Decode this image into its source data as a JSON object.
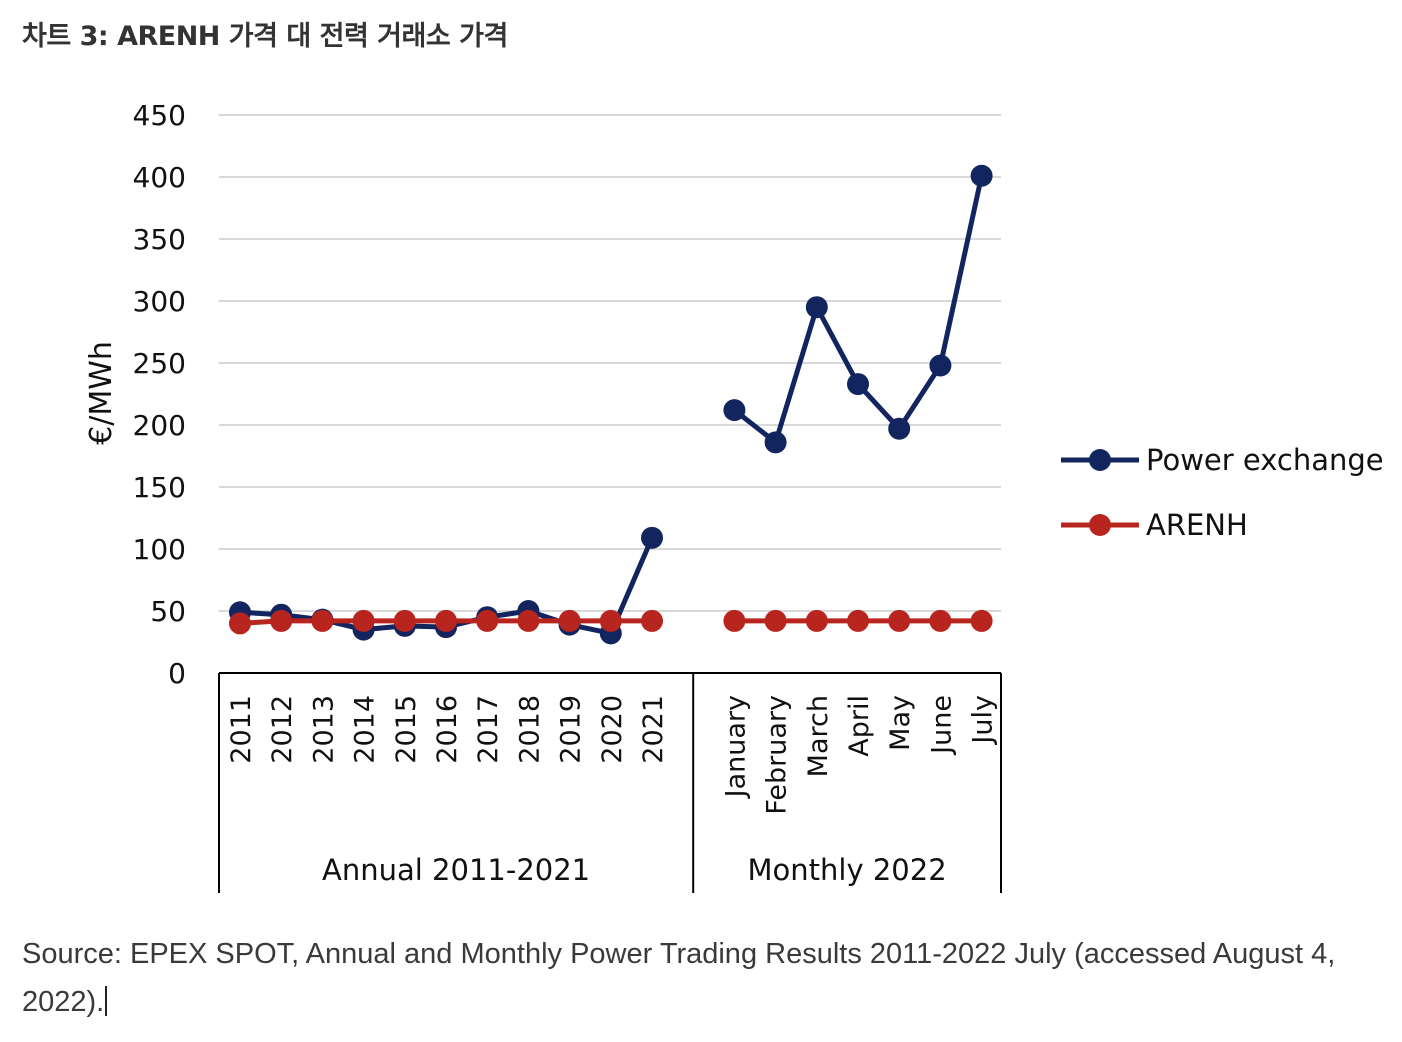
{
  "title": "차트 3: ARENH 가격 대 전력 거래소 가격",
  "source": "Source: EPEX SPOT, Annual and Monthly Power Trading Results 2011-2022 July (accessed August 4, 2022).",
  "colors": {
    "power_exchange": "#12255e",
    "arenh": "#b8251e",
    "grid": "#d9d9d9",
    "axis": "#000000"
  },
  "chart_data": {
    "type": "line",
    "title": "",
    "ylabel": "€/MWh",
    "ylim": [
      0,
      450
    ],
    "yticks": [
      "0",
      "50",
      "100",
      "150",
      "200",
      "250",
      "300",
      "350",
      "400",
      "450"
    ],
    "grid": true,
    "legend_position": "right",
    "groups": [
      {
        "label": "Annual 2011-2021",
        "categories": [
          "2011",
          "2012",
          "2013",
          "2014",
          "2015",
          "2016",
          "2017",
          "2018",
          "2019",
          "2020",
          "2021"
        ]
      },
      {
        "label": "Monthly 2022",
        "categories": [
          "January",
          "February",
          "March",
          "April",
          "May",
          "June",
          "July"
        ]
      }
    ],
    "series": [
      {
        "name": "Power exchange",
        "segments": [
          [
            49,
            47,
            43,
            35,
            38,
            37,
            45,
            50,
            39,
            32,
            109
          ],
          [
            212,
            186,
            295,
            233,
            197,
            248,
            401
          ]
        ]
      },
      {
        "name": "ARENH",
        "segments": [
          [
            40,
            42,
            42,
            42,
            42,
            42,
            42,
            42,
            42,
            42,
            42
          ],
          [
            42,
            42,
            42,
            42,
            42,
            42,
            42
          ]
        ]
      }
    ]
  }
}
